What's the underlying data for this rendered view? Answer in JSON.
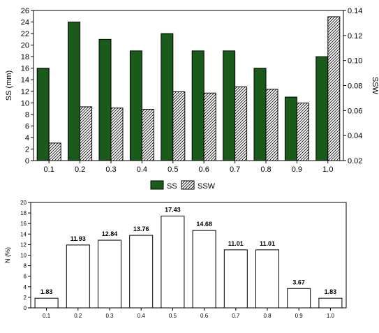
{
  "chart_data": [
    {
      "type": "bar",
      "categories": [
        "0.1",
        "0.2",
        "0.3",
        "0.4",
        "0.5",
        "0.6",
        "0.7",
        "0.8",
        "0.9",
        "1.0"
      ],
      "series": [
        {
          "name": "SS",
          "axis": "left",
          "values": [
            16,
            24,
            21,
            19,
            22,
            19,
            19,
            16,
            11,
            18
          ],
          "color": "#1a5a1a",
          "fill": "solid"
        },
        {
          "name": "SSW",
          "axis": "right",
          "values": [
            0.034,
            0.063,
            0.062,
            0.061,
            0.075,
            0.074,
            0.079,
            0.077,
            0.066,
            0.135
          ],
          "color": "#000000",
          "fill": "hatched"
        }
      ],
      "ylabel": "SS (mm)",
      "y2label": "SSW",
      "ylim": [
        0,
        26
      ],
      "y2lim": [
        0.02,
        0.14
      ],
      "yticks": [
        "0",
        "2",
        "4",
        "6",
        "8",
        "10",
        "12",
        "14",
        "16",
        "18",
        "20",
        "22",
        "24",
        "26"
      ],
      "y2ticks": [
        "0.02",
        "0.04",
        "0.06",
        "0.08",
        "0.10",
        "0.12",
        "0.14"
      ],
      "legend": {
        "placement": "bottom",
        "entries": [
          "SS",
          "SSW"
        ]
      }
    },
    {
      "type": "bar",
      "categories": [
        "0.1",
        "0.2",
        "0.3",
        "0.4",
        "0.5",
        "0.6",
        "0.7",
        "0.8",
        "0.9",
        "1.0"
      ],
      "values": [
        1.83,
        11.93,
        12.84,
        13.76,
        17.43,
        14.68,
        11.01,
        11.01,
        3.67,
        1.83
      ],
      "data_labels": [
        "1.83",
        "11.93",
        "12.84",
        "13.76",
        "17.43",
        "14.68",
        "11.01",
        "11.01",
        "3.67",
        "1.83"
      ],
      "ylabel": "N (%)",
      "ylim": [
        0,
        20
      ],
      "yticks": [
        "0",
        "2",
        "4",
        "6",
        "8",
        "10",
        "12",
        "14",
        "16",
        "18",
        "20"
      ],
      "color": "#ffffff"
    }
  ]
}
